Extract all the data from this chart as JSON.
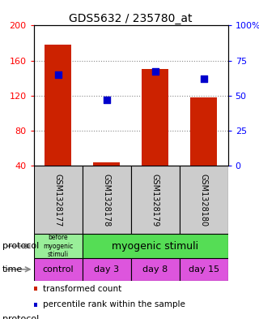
{
  "title": "GDS5632 / 235780_at",
  "samples": [
    "GSM1328177",
    "GSM1328178",
    "GSM1328179",
    "GSM1328180"
  ],
  "transformed_counts": [
    178,
    44,
    150,
    118
  ],
  "percentile_ranks": [
    65,
    47,
    67,
    62
  ],
  "ylim_left": [
    40,
    200
  ],
  "ylim_right": [
    0,
    100
  ],
  "yticks_left": [
    40,
    80,
    120,
    160,
    200
  ],
  "yticks_right": [
    0,
    25,
    50,
    75,
    100
  ],
  "ytick_labels_right": [
    "0",
    "25",
    "50",
    "75",
    "100%"
  ],
  "bar_color": "#cc2200",
  "dot_color": "#0000cc",
  "bar_bottom": 40,
  "protocol_label_0": "before\nmyogenic\nstimuli",
  "protocol_label_1": "myogenic stimuli",
  "protocol_color_0": "#99ee99",
  "protocol_color_1": "#55dd55",
  "time_labels": [
    "control",
    "day 3",
    "day 8",
    "day 15"
  ],
  "time_color": "#dd55dd",
  "grid_color": "#888888",
  "sample_bg_color": "#cccccc",
  "legend_red": "transformed count",
  "legend_blue": "percentile rank within the sample",
  "figwidth": 3.2,
  "figheight": 3.93
}
